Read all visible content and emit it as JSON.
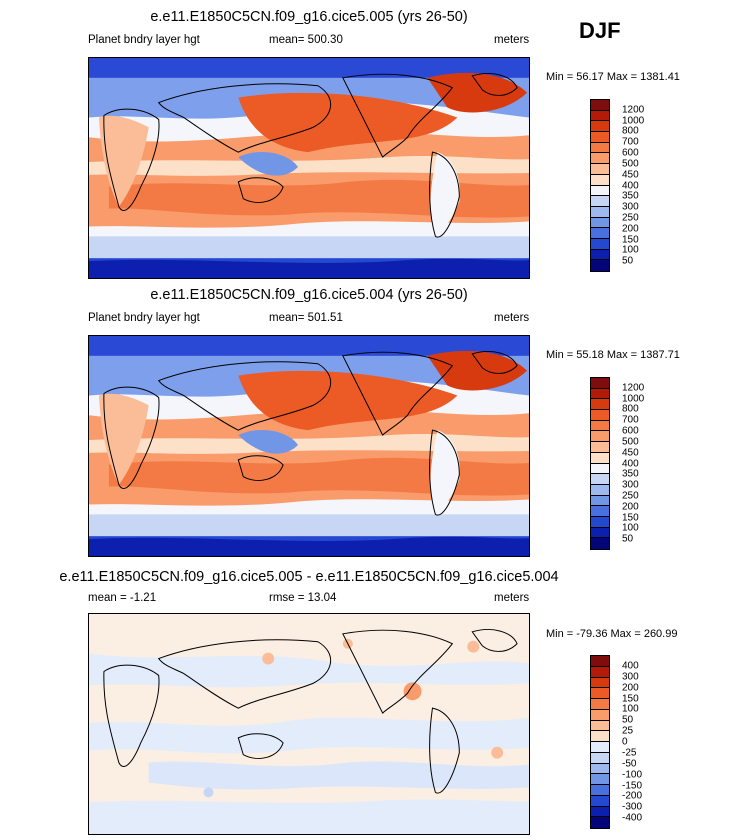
{
  "season": "DJF",
  "panels": [
    {
      "title": "e.e11.E1850C5CN.f09_g16.cice5.005 (yrs 26-50)",
      "left_label": "Planet bndry layer hgt",
      "center_label": "mean= 500.30",
      "right_label": "meters",
      "minmax": "Min =  56.17 Max = 1381.41"
    },
    {
      "title": "e.e11.E1850C5CN.f09_g16.cice5.004 (yrs 26-50)",
      "left_label": "Planet bndry layer hgt",
      "center_label": "mean= 501.51",
      "right_label": "meters",
      "minmax": "Min =  55.18 Max = 1387.71"
    },
    {
      "title": "e.e11.E1850C5CN.f09_g16.cice5.005 - e.e11.E1850C5CN.f09_g16.cice5.004",
      "left_label": "mean =  -1.21",
      "center_label": "rmse =  13.04",
      "right_label": "meters",
      "minmax": "Min = -79.36 Max = 260.99"
    }
  ],
  "chart_data": [
    {
      "type": "heatmap",
      "title": "e.e11.E1850C5CN.f09_g16.cice5.005 (yrs 26-50)",
      "variable": "Planet bndry layer hgt",
      "units": "meters",
      "mean": 500.3,
      "min": 56.17,
      "max": 1381.41,
      "colorbar_levels": [
        "1200",
        "1000",
        "800",
        "700",
        "600",
        "500",
        "450",
        "400",
        "350",
        "300",
        "250",
        "200",
        "150",
        "100",
        "50"
      ],
      "colorbar_colors": [
        "#800d0d",
        "#b31a0a",
        "#d83a10",
        "#ec5a26",
        "#f47a45",
        "#f99b6a",
        "#fbbd97",
        "#fde0c8",
        "#f4f6fb",
        "#c6d6f4",
        "#9db9ef",
        "#7196e6",
        "#4a70e0",
        "#2448cf",
        "#0c1fae",
        "#05057a"
      ]
    },
    {
      "type": "heatmap",
      "title": "e.e11.E1850C5CN.f09_g16.cice5.004 (yrs 26-50)",
      "variable": "Planet bndry layer hgt",
      "units": "meters",
      "mean": 501.51,
      "min": 55.18,
      "max": 1387.71,
      "colorbar_levels": [
        "1200",
        "1000",
        "800",
        "700",
        "600",
        "500",
        "450",
        "400",
        "350",
        "300",
        "250",
        "200",
        "150",
        "100",
        "50"
      ],
      "colorbar_colors": [
        "#800d0d",
        "#b31a0a",
        "#d83a10",
        "#ec5a26",
        "#f47a45",
        "#f99b6a",
        "#fbbd97",
        "#fde0c8",
        "#f4f6fb",
        "#c6d6f4",
        "#9db9ef",
        "#7196e6",
        "#4a70e0",
        "#2448cf",
        "#0c1fae",
        "#05057a"
      ]
    },
    {
      "type": "heatmap",
      "title": "e.e11.E1850C5CN.f09_g16.cice5.005 - e.e11.E1850C5CN.f09_g16.cice5.004",
      "units": "meters",
      "mean": -1.21,
      "rmse": 13.04,
      "min": -79.36,
      "max": 260.99,
      "colorbar_levels": [
        "400",
        "300",
        "200",
        "150",
        "100",
        "50",
        "25",
        "0",
        "-25",
        "-50",
        "-100",
        "-150",
        "-200",
        "-300",
        "-400"
      ],
      "colorbar_colors": [
        "#800d0d",
        "#b31a0a",
        "#d83a10",
        "#ec5a26",
        "#f47a45",
        "#f99b6a",
        "#fbbd97",
        "#fde0c8",
        "#e3ecfb",
        "#c6d6f4",
        "#9db9ef",
        "#7196e6",
        "#4a70e0",
        "#2448cf",
        "#0c1fae",
        "#05057a"
      ]
    }
  ]
}
